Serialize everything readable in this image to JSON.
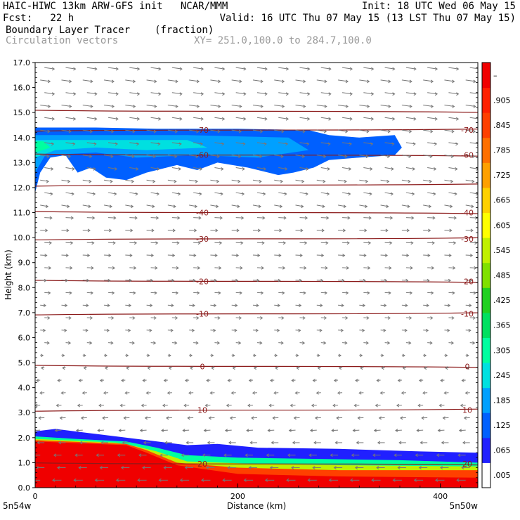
{
  "header": {
    "left_line1": "HAIC-HIWC 13km ARW-GFS init   NCAR/MMM",
    "right_line1": "Init: 18 UTC Wed 06 May 15",
    "fcst_label": "Fcst:   22 h",
    "valid_line": "Valid: 16 UTC Thu 07 May 15 (13 LST Thu 07 May 15)",
    "field_name": "Boundary Layer Tracer",
    "field_units": "(fraction)",
    "vector_label": "Circulation vectors",
    "xy_label": "XY= 251.0,100.0 to 284.7,100.0"
  },
  "chart_data": {
    "type": "heatmap",
    "xlabel": "Distance (km)",
    "ylabel": "Height (km)",
    "xlim": [
      0,
      437
    ],
    "ylim": [
      0,
      17
    ],
    "x_ticks": [
      0,
      200,
      400
    ],
    "y_ticks": [
      "0.0",
      "1.0",
      "2.0",
      "3.0",
      "4.0",
      "5.0",
      "6.0",
      "7.0",
      "8.0",
      "9.0",
      "10.0",
      "11.0",
      "12.0",
      "13.0",
      "14.0",
      "15.0",
      "16.0",
      "17.0"
    ],
    "x_endpoints": {
      "left": "5n54w",
      "right": "5n50w"
    },
    "colorbar": {
      "labels": [
        ".005",
        ".065",
        ".125",
        ".185",
        ".245",
        ".305",
        ".365",
        ".425",
        ".485",
        ".545",
        ".605",
        ".665",
        ".725",
        ".785",
        ".845",
        ".905",
        "–"
      ],
      "colors": [
        "#ffffff",
        "#2020ff",
        "#0060ff",
        "#00a0ff",
        "#00e0e0",
        "#00ffa0",
        "#00e060",
        "#20d020",
        "#80e000",
        "#c0f000",
        "#ffff00",
        "#ffd000",
        "#ffa000",
        "#ff7000",
        "#ff4000",
        "#ff2000",
        "#f00000"
      ]
    },
    "isotherms": [
      {
        "height_km": 15.05,
        "label": ""
      },
      {
        "height_km": 14.3,
        "label": "-70"
      },
      {
        "height_km": 13.3,
        "label": "-60"
      },
      {
        "height_km": 12.1,
        "label": ""
      },
      {
        "height_km": 11.0,
        "label": "-40"
      },
      {
        "height_km": 9.95,
        "label": "-30"
      },
      {
        "height_km": 8.25,
        "label": "-20"
      },
      {
        "height_km": 6.95,
        "label": "-10"
      },
      {
        "height_km": 4.85,
        "label": "0"
      },
      {
        "height_km": 3.1,
        "label": "10"
      },
      {
        "height_km": 0.95,
        "label": "20"
      }
    ],
    "upper_layer": {
      "x_range_km": [
        0,
        365
      ],
      "base_km": 12.3,
      "top_km": 14.3,
      "value": "0.005-0.3"
    },
    "boundary_layer": {
      "x_range_km": [
        0,
        437
      ],
      "top_left_km": 2.2,
      "top_right_km": 1.4,
      "value": "0.3-1.0"
    }
  }
}
